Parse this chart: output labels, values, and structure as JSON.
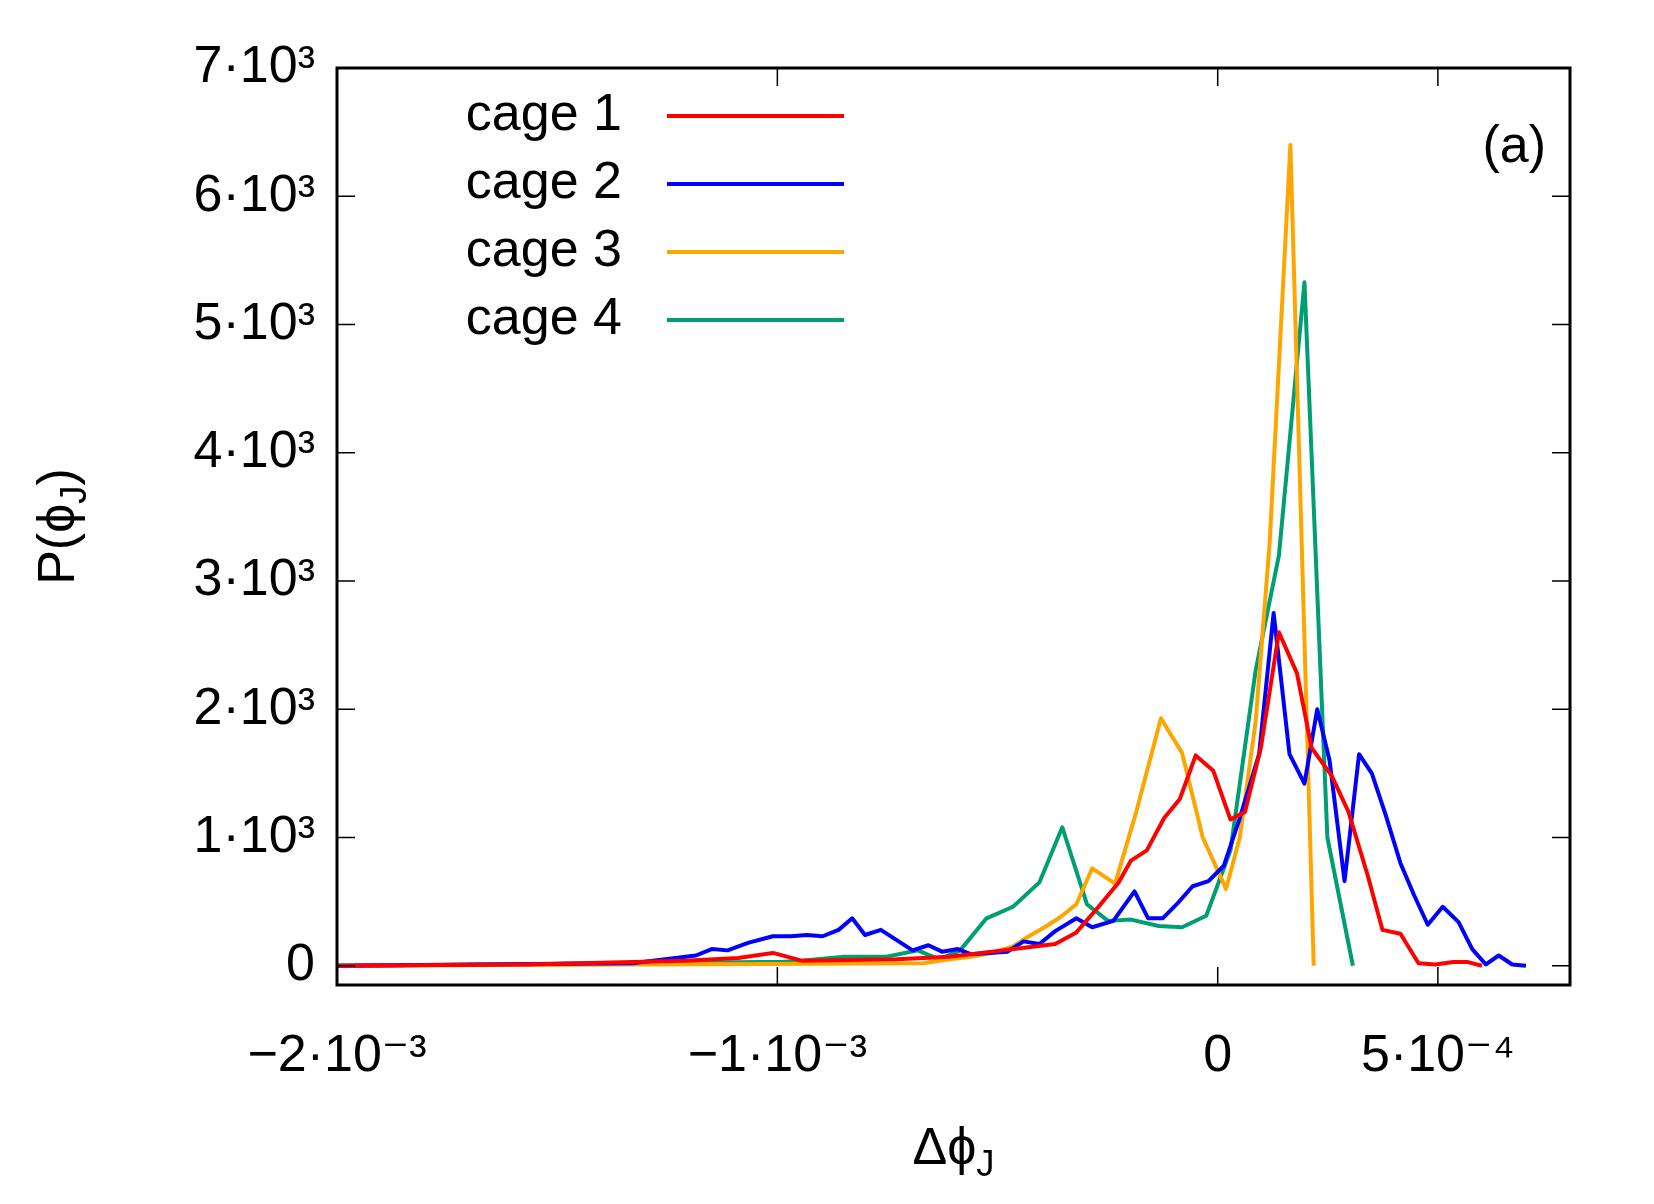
{
  "chart_data": {
    "type": "line",
    "xlabel": "Δϕ$_{J}$",
    "ylabel": "P(ϕ$_{J}$)",
    "annotations": [
      "(a)"
    ],
    "legend": "top left",
    "xlim": [
      -0.002,
      0.0008
    ],
    "xticks": [
      {
        "value": -0.002,
        "label": "−2·10⁻³"
      },
      {
        "value": -0.001,
        "label": "−1·10⁻³"
      },
      0,
      {
        "value": 0.0005,
        "label": "5·10⁻⁴"
      }
    ],
    "ylim": [
      -150,
      7000
    ],
    "yticks": [
      0,
      {
        "value": 1000,
        "label": "1·10³"
      },
      {
        "value": 2000,
        "label": "2·10³"
      },
      {
        "value": 3000,
        "label": "3·10³"
      },
      {
        "value": 4000,
        "label": "4·10³"
      },
      {
        "value": 5000,
        "label": "5·10³"
      },
      {
        "value": 6000,
        "label": "6·10³"
      },
      {
        "value": 7000,
        "label": "7·10³"
      }
    ],
    "series": [
      {
        "name": "cage 1",
        "color": "#ff0000",
        "x": [
          -0.002,
          -0.001568,
          -0.001209,
          -0.001089,
          -0.00101,
          -0.000945,
          -0.000729,
          -0.000609,
          -0.000489,
          -0.000369,
          -0.000321,
          -0.000273,
          -0.000225,
          -0.000197,
          -0.000161,
          -0.000122,
          -8.6e-05,
          -5e-05,
          -1e-05,
          2.9e-05,
          6.2e-05,
          9.8e-05,
          0.000139,
          0.00018,
          0.000213,
          0.000259,
          0.000297,
          0.000341,
          0.000374,
          0.000415,
          0.000456,
          0.000494,
          0.000535,
          0.000566,
          0.0006
        ],
        "values": [
          0,
          10,
          40,
          60,
          100,
          40,
          50,
          70,
          120,
          170,
          260,
          450,
          650,
          820,
          900,
          1150,
          1300,
          1640,
          1520,
          1140,
          1200,
          1700,
          2600,
          2280,
          1700,
          1480,
          1200,
          700,
          280,
          250,
          20,
          10,
          30,
          30,
          0
        ]
      },
      {
        "name": "cage 2",
        "color": "#0000ff",
        "x": [
          -0.002,
          -0.001329,
          -0.001185,
          -0.001149,
          -0.001113,
          -0.001065,
          -0.00101,
          -0.000969,
          -0.000933,
          -0.000897,
          -0.000861,
          -0.00083,
          -0.000801,
          -0.000765,
          -0.000729,
          -0.000693,
          -0.000657,
          -0.000626,
          -0.00059,
          -0.000561,
          -0.000518,
          -0.000477,
          -0.000441,
          -0.000405,
          -0.000369,
          -0.000321,
          -0.000285,
          -0.000237,
          -0.000189,
          -0.000158,
          -0.000125,
          -9.3e-05,
          -5.7e-05,
          -2.1e-05,
          1.4e-05,
          5e-05,
          9.4e-05,
          0.000127,
          0.000163,
          0.000197,
          0.000226,
          0.000254,
          0.000288,
          0.000321,
          0.00035,
          0.000381,
          0.000415,
          0.000446,
          0.000477,
          0.000511,
          0.000547,
          0.000578,
          0.000609,
          0.000638,
          0.000669,
          0.0007
        ],
        "values": [
          0,
          20,
          80,
          130,
          120,
          180,
          230,
          230,
          240,
          230,
          280,
          370,
          240,
          280,
          200,
          120,
          160,
          110,
          130,
          90,
          100,
          110,
          190,
          170,
          270,
          370,
          300,
          350,
          580,
          370,
          370,
          480,
          620,
          660,
          780,
          1150,
          1650,
          2750,
          1650,
          1420,
          2000,
          1600,
          660,
          1650,
          1500,
          1180,
          800,
          550,
          320,
          460,
          340,
          130,
          10,
          80,
          10,
          0
        ]
      },
      {
        "name": "cage 3",
        "color": "#ffa500",
        "x": [
          -0.002,
          -0.000669,
          -0.000609,
          -0.000561,
          -0.000513,
          -0.000465,
          -0.000429,
          -0.000393,
          -0.000357,
          -0.000321,
          -0.000285,
          -0.000233,
          -0.000185,
          -0.000129,
          -8.1e-05,
          -3.4e-05,
          1.9e-05,
          5e-05,
          8.6e-05,
          0.000118,
          0.000165,
          0.000218
        ],
        "values": [
          0,
          20,
          50,
          70,
          100,
          150,
          230,
          300,
          380,
          480,
          760,
          640,
          1200,
          1930,
          1660,
          1000,
          600,
          1000,
          1900,
          3300,
          6400,
          0
        ]
      },
      {
        "name": "cage 4",
        "color": "#009e73",
        "x": [
          -0.002,
          -0.000993,
          -0.000945,
          -0.000849,
          -0.000753,
          -0.000681,
          -0.000633,
          -0.000585,
          -0.000525,
          -0.000465,
          -0.000405,
          -0.000353,
          -0.000297,
          -0.000249,
          -0.000197,
          -0.000134,
          -8.1e-05,
          -2.6e-05,
          2.9e-05,
          8.6e-05,
          0.000139,
          0.000197,
          0.000249,
          0.000307
        ],
        "values": [
          0,
          30,
          40,
          70,
          70,
          120,
          50,
          120,
          370,
          460,
          650,
          1080,
          480,
          350,
          360,
          310,
          300,
          390,
          900,
          2300,
          3200,
          5330,
          1000,
          0
        ]
      }
    ]
  }
}
